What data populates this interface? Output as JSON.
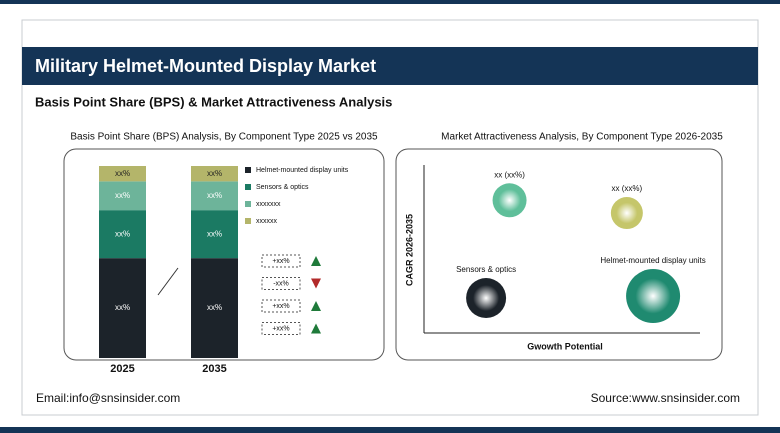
{
  "header": {
    "title": "Military Helmet-Mounted Display Market",
    "subtitle": "Basis Point Share (BPS) & Market Attractiveness Analysis"
  },
  "chart_data": [
    {
      "type": "stacked-bar",
      "title": "Basis Point Share (BPS) Analysis, By Component Type 2025 vs 2035",
      "categories": [
        "2025",
        "2035"
      ],
      "series": [
        {
          "name": "Helmet-mounted display units",
          "color": "#1c232a",
          "values": [
            52,
            52
          ],
          "value_labels": [
            "xx%",
            "xx%"
          ]
        },
        {
          "name": "Sensors & optics",
          "color": "#1b7a63",
          "values": [
            25,
            25
          ],
          "value_labels": [
            "xx%",
            "xx%"
          ]
        },
        {
          "name": "xxxxxxx",
          "color": "#6db49a",
          "values": [
            15,
            15
          ],
          "value_labels": [
            "xx%",
            "xx%"
          ]
        },
        {
          "name": "xxxxxx",
          "color": "#b4b56a",
          "values": [
            8,
            8
          ],
          "value_labels": [
            "xx%",
            "xx%"
          ]
        }
      ],
      "changes": [
        {
          "label": "+xx%",
          "direction": "up"
        },
        {
          "label": "-xx%",
          "direction": "down"
        },
        {
          "label": "+xx%",
          "direction": "up"
        },
        {
          "label": "+xx%",
          "direction": "up"
        }
      ]
    },
    {
      "type": "bubble",
      "title": "Market Attractiveness Analysis, By Component Type 2026-2035",
      "x_label": "Gwowth Potential",
      "y_label": "CAGR 2026-2035",
      "xlim": [
        0,
        100
      ],
      "ylim": [
        0,
        100
      ],
      "labels": [
        "xx (xx%)",
        "xx (xx%)",
        "Sensors & optics",
        "Helmet-mounted display units"
      ],
      "x": [
        31,
        73.5,
        22.5,
        83
      ],
      "y": [
        79,
        71.4,
        20.8,
        22
      ],
      "size": [
        17,
        16,
        20,
        27
      ],
      "colors": [
        "#5fbf9a",
        "#c5c66a",
        "#1c232a",
        "#1f8a70"
      ]
    }
  ],
  "footer": {
    "email": "Email:info@snsinsider.com",
    "source": "Source:www.snsinsider.com"
  }
}
